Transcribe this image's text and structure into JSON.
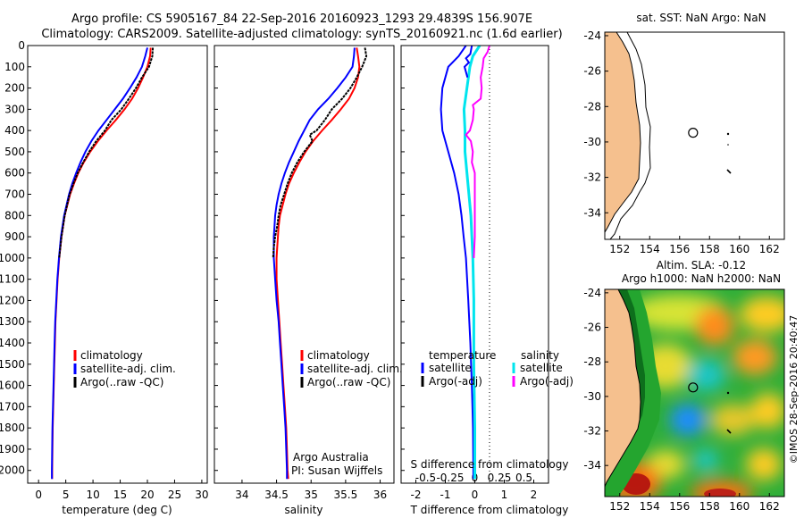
{
  "header": {
    "line1": "Argo profile: CS 5905167_84 22-Sep-2016 20160923_1293 29.4839S 156.907E",
    "line2": "Climatology: CARS2009. Satellite-adjusted climatology: synTS_20160921.nc (1.6d earlier)"
  },
  "depth_ticks": [
    "0",
    "100",
    "200",
    "300",
    "400",
    "500",
    "600",
    "700",
    "800",
    "900",
    "1000",
    "1100",
    "1200",
    "1300",
    "1400",
    "1500",
    "1600",
    "1700",
    "1800",
    "1900",
    "2000"
  ],
  "colors": {
    "climatology": "#ff0000",
    "satellite": "#0000ff",
    "argo": "#000000",
    "cyan": "#00e5ee",
    "magenta": "#ff00ff",
    "land": "#f5c08e"
  },
  "chart_data": [
    {
      "type": "line",
      "title": "temperature",
      "xlabel": "temperature (deg C)",
      "ylabel": "depth",
      "xlim": [
        -2,
        31
      ],
      "ylim": [
        2060,
        0
      ],
      "xticks": [
        "0",
        "5",
        "10",
        "15",
        "20",
        "25",
        "30"
      ],
      "legend": [
        "climatology",
        "satellite-adj. clim.",
        "Argo(..raw -QC)"
      ],
      "series": [
        {
          "name": "climatology",
          "depth": [
            10,
            50,
            100,
            150,
            200,
            250,
            300,
            350,
            400,
            450,
            500,
            550,
            600,
            650,
            700,
            800,
            900,
            1000,
            1100,
            1200,
            1300,
            1400,
            1500,
            1600,
            1700,
            1800,
            1900,
            2000,
            2040
          ],
          "values": [
            20.6,
            20.5,
            20.0,
            19.2,
            18.3,
            17.2,
            15.8,
            14.2,
            12.5,
            10.9,
            9.5,
            8.3,
            7.3,
            6.5,
            5.8,
            4.8,
            4.2,
            3.8,
            3.5,
            3.3,
            3.1,
            3.0,
            2.9,
            2.8,
            2.7,
            2.6,
            2.55,
            2.5,
            2.5
          ]
        },
        {
          "name": "satellite-adj. clim.",
          "depth": [
            10,
            50,
            100,
            150,
            200,
            250,
            300,
            350,
            400,
            450,
            500,
            550,
            600,
            650,
            700,
            800,
            900,
            1000,
            1100,
            1200,
            1300,
            1400,
            1500,
            1600,
            1700,
            1800,
            1900,
            2000,
            2040
          ],
          "values": [
            20.0,
            19.6,
            19.0,
            18.0,
            16.8,
            15.5,
            14.0,
            12.5,
            11.0,
            9.7,
            8.6,
            7.7,
            6.9,
            6.2,
            5.6,
            4.7,
            4.1,
            3.75,
            3.45,
            3.25,
            3.05,
            2.95,
            2.85,
            2.75,
            2.65,
            2.55,
            2.5,
            2.45,
            2.45
          ]
        },
        {
          "name": "Argo(..raw -QC)",
          "depth": [
            10,
            50,
            100,
            150,
            200,
            250,
            300,
            350,
            400,
            450,
            500,
            550,
            600,
            650,
            700,
            800,
            900,
            1000
          ],
          "values": [
            21.0,
            20.9,
            20.3,
            19.0,
            17.9,
            16.6,
            15.2,
            13.4,
            12.2,
            10.6,
            9.3,
            8.2,
            7.2,
            6.4,
            5.7,
            4.8,
            4.2,
            3.8
          ]
        }
      ]
    },
    {
      "type": "line",
      "title": "salinity",
      "xlabel": "salinity",
      "ylabel": "depth",
      "xlim": [
        33.6,
        36.2
      ],
      "ylim": [
        2060,
        0
      ],
      "xticks": [
        "34",
        "34.5",
        "35",
        "35.5",
        "36"
      ],
      "legend": [
        "climatology",
        "satellite-adj. clim.",
        "Argo(..raw -QC)"
      ],
      "credit": [
        "Argo Australia",
        "PI: Susan Wijffels"
      ],
      "series": [
        {
          "name": "climatology",
          "depth": [
            10,
            50,
            100,
            150,
            200,
            250,
            300,
            350,
            400,
            450,
            500,
            550,
            600,
            650,
            700,
            750,
            800,
            850,
            900,
            950,
            1000,
            1100,
            1200,
            1300,
            1400,
            1500,
            1600,
            1700,
            1800,
            1900,
            2000,
            2040
          ],
          "values": [
            35.66,
            35.68,
            35.7,
            35.68,
            35.63,
            35.55,
            35.43,
            35.3,
            35.16,
            35.03,
            34.92,
            34.83,
            34.75,
            34.68,
            34.63,
            34.59,
            34.55,
            34.53,
            34.52,
            34.51,
            34.5,
            34.5,
            34.52,
            34.54,
            34.56,
            34.58,
            34.6,
            34.62,
            34.64,
            34.65,
            34.66,
            34.67
          ]
        },
        {
          "name": "satellite-adj. clim.",
          "depth": [
            10,
            50,
            100,
            150,
            200,
            250,
            300,
            350,
            400,
            450,
            500,
            550,
            600,
            650,
            700,
            750,
            800,
            850,
            900,
            950,
            1000,
            1100,
            1200,
            1300,
            1400,
            1500,
            1600,
            1700,
            1800,
            1900,
            2000,
            2040
          ],
          "values": [
            35.63,
            35.62,
            35.6,
            35.5,
            35.38,
            35.25,
            35.1,
            34.98,
            34.9,
            34.82,
            34.75,
            34.68,
            34.62,
            34.57,
            34.53,
            34.5,
            34.48,
            34.47,
            34.46,
            34.46,
            34.46,
            34.48,
            34.5,
            34.53,
            34.55,
            34.57,
            34.59,
            34.61,
            34.63,
            34.64,
            34.65,
            34.65
          ]
        },
        {
          "name": "Argo(..raw -QC)",
          "depth": [
            10,
            50,
            100,
            150,
            200,
            250,
            300,
            350,
            400,
            420,
            450,
            500,
            550,
            600,
            650,
            700,
            750,
            800,
            850,
            900,
            950,
            1000
          ],
          "values": [
            35.78,
            35.8,
            35.74,
            35.66,
            35.57,
            35.45,
            35.3,
            35.2,
            35.08,
            34.98,
            35.02,
            34.9,
            34.8,
            34.72,
            34.66,
            34.61,
            34.56,
            34.53,
            34.51,
            34.48,
            34.46,
            34.45
          ]
        }
      ]
    },
    {
      "type": "line",
      "title": "differences from climatology",
      "xlabel": "T difference from climatology",
      "xlabel_top": "S difference from climatology",
      "xlim": [
        -2.5,
        2.5
      ],
      "ylim": [
        2060,
        0
      ],
      "xticks": [
        "-2",
        "-1",
        "0",
        "1",
        "2"
      ],
      "xticks_top": [
        "-0.5",
        "-0.25",
        "0",
        "0.25",
        "0.5"
      ],
      "legend_headers": [
        "temperature",
        "salinity"
      ],
      "legend": [
        "satellite",
        "Argo(-adj)",
        "satellite",
        "Argo(-adj)"
      ],
      "series": [
        {
          "name": "temperature satellite",
          "depth": [
            0,
            50,
            100,
            150,
            200,
            300,
            400,
            500,
            600,
            700,
            800,
            900,
            1000,
            1200,
            1400,
            1600,
            1800,
            2000,
            2040
          ],
          "values": [
            -0.3,
            -0.55,
            -0.9,
            -1.0,
            -1.1,
            -1.15,
            -1.1,
            -0.9,
            -0.7,
            -0.55,
            -0.45,
            -0.38,
            -0.3,
            -0.22,
            -0.15,
            -0.1,
            -0.06,
            -0.05,
            -0.05
          ]
        },
        {
          "name": "temperature Argo(-adj)",
          "depth": [
            0,
            40,
            60,
            80,
            100,
            150
          ],
          "values": [
            -0.1,
            -0.15,
            -0.3,
            -0.2,
            -0.35,
            -0.25
          ]
        },
        {
          "name": "salinity satellite",
          "depth": [
            0,
            50,
            100,
            200,
            300,
            400,
            500,
            600,
            700,
            800,
            900,
            1000,
            1200,
            1500,
            1800,
            2000,
            2040
          ],
          "values": [
            0.05,
            -0.02,
            -0.05,
            -0.08,
            -0.11,
            -0.1,
            -0.1,
            -0.08,
            -0.06,
            -0.04,
            -0.03,
            -0.02,
            -0.01,
            -0.01,
            0.0,
            0.0,
            0.0
          ]
        },
        {
          "name": "salinity Argo(-adj)",
          "depth": [
            0,
            30,
            60,
            100,
            150,
            200,
            250,
            280,
            300,
            350,
            400,
            420,
            450,
            500,
            550,
            600,
            700,
            800,
            900,
            1000
          ],
          "values": [
            0.15,
            0.13,
            0.09,
            0.08,
            0.06,
            0.07,
            0.06,
            -0.02,
            -0.01,
            -0.02,
            -0.05,
            -0.09,
            -0.04,
            -0.02,
            -0.03,
            0.0,
            0.0,
            0.0,
            0.0,
            -0.01
          ]
        }
      ]
    },
    {
      "type": "map",
      "title": "sat. SST: NaN Argo: NaN",
      "xlim": [
        151,
        163
      ],
      "ylim": [
        -35.5,
        -23.8
      ],
      "xticks": [
        "152",
        "154",
        "156",
        "158",
        "160",
        "162"
      ],
      "yticks": [
        "-24",
        "-26",
        "-28",
        "-30",
        "-32",
        "-34"
      ],
      "marker": {
        "lon": 156.9,
        "lat": -29.48
      }
    },
    {
      "type": "heatmap",
      "title": "Altim. SLA: -0.12",
      "subtitle": "Argo h1000: NaN h2000: NaN",
      "xlim": [
        151,
        163
      ],
      "ylim": [
        -35.8,
        -23.8
      ],
      "xticks": [
        "152",
        "154",
        "156",
        "158",
        "160",
        "162"
      ],
      "yticks": [
        "-24",
        "-26",
        "-28",
        "-30",
        "-32",
        "-34"
      ],
      "marker": {
        "lon": 156.9,
        "lat": -29.48
      },
      "side_label": "©IMOS 28-Sep-2016 20:40:47"
    }
  ]
}
